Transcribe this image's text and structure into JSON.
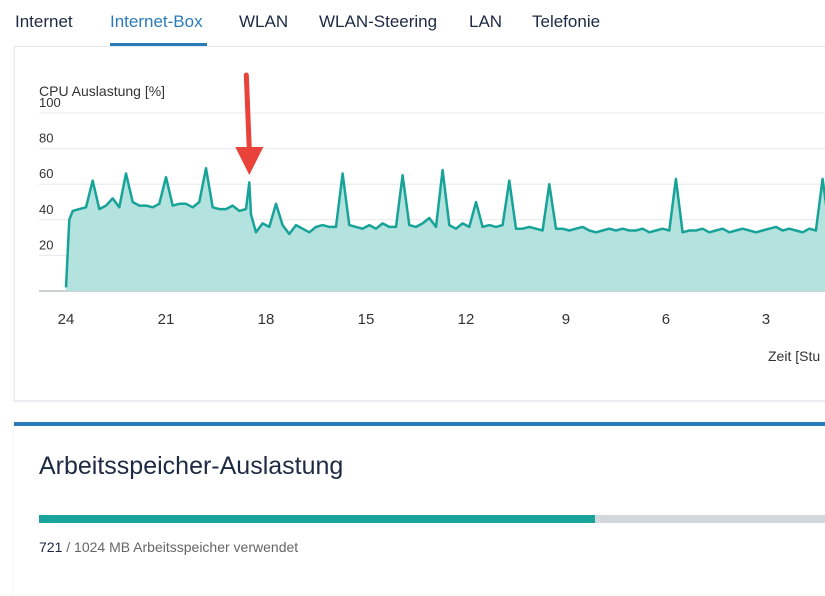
{
  "tabs": [
    {
      "label": "Internet",
      "active": false
    },
    {
      "label": "Internet-Box",
      "active": true
    },
    {
      "label": "WLAN",
      "active": false
    },
    {
      "label": "WLAN-Steering",
      "active": false
    },
    {
      "label": "LAN",
      "active": false
    },
    {
      "label": "Telefonie",
      "active": false
    }
  ],
  "colors": {
    "accent": "#2b7bb9",
    "series_line": "#18a399",
    "series_fill": "#b4e2df",
    "arrow": "#e8423b"
  },
  "chart_data": {
    "type": "area",
    "title": "CPU Auslastung [%]",
    "xlabel": "Zeit [Stu",
    "ylabel": "",
    "ylim": [
      0,
      100
    ],
    "yticks": [
      "20",
      "40",
      "60",
      "80",
      "100"
    ],
    "xlim": [
      24,
      0
    ],
    "xticks": [
      "24",
      "21",
      "18",
      "15",
      "12",
      "9",
      "6",
      "3"
    ],
    "grid": true,
    "annotation": {
      "type": "arrow",
      "points_to_x": 18.5
    },
    "series": [
      {
        "x": [
          24,
          23.9,
          23.8,
          23.6,
          23.4,
          23.2,
          23.0,
          22.8,
          22.6,
          22.4,
          22.2,
          22.0,
          21.8,
          21.6,
          21.4,
          21.2,
          21.0,
          20.8,
          20.6,
          20.4,
          20.2,
          20.0,
          19.8,
          19.6,
          19.4,
          19.2,
          19.0,
          18.8,
          18.6,
          18.5,
          18.45,
          18.3,
          18.1,
          17.9,
          17.7,
          17.5,
          17.3,
          17.1,
          16.9,
          16.7,
          16.5,
          16.3,
          16.1,
          15.9,
          15.7,
          15.5,
          15.3,
          15.1,
          14.9,
          14.7,
          14.5,
          14.3,
          14.1,
          13.9,
          13.7,
          13.5,
          13.3,
          13.1,
          12.9,
          12.7,
          12.5,
          12.3,
          12.1,
          11.9,
          11.7,
          11.5,
          11.3,
          11.1,
          10.9,
          10.7,
          10.5,
          10.3,
          10.1,
          9.9,
          9.7,
          9.5,
          9.3,
          9.1,
          8.9,
          8.7,
          8.5,
          8.3,
          8.1,
          7.9,
          7.7,
          7.5,
          7.3,
          7.1,
          6.9,
          6.7,
          6.5,
          6.3,
          6.1,
          5.9,
          5.7,
          5.5,
          5.3,
          5.1,
          4.9,
          4.7,
          4.5,
          4.3,
          4.1,
          3.9,
          3.7,
          3.5,
          3.3,
          3.1,
          2.9,
          2.7,
          2.5,
          2.3,
          2.1,
          1.9,
          1.7,
          1.5,
          1.3,
          1.1,
          0.9,
          0.8,
          0.7
        ],
        "y": [
          2,
          40,
          45,
          46,
          47,
          62,
          46,
          48,
          52,
          47,
          66,
          50,
          48,
          48,
          47,
          49,
          64,
          48,
          49,
          49,
          47,
          50,
          69,
          47,
          46,
          46,
          48,
          45,
          46,
          61,
          43,
          33,
          38,
          36,
          49,
          37,
          32,
          37,
          35,
          33,
          36,
          37,
          36,
          36,
          66,
          37,
          36,
          35,
          37,
          35,
          38,
          36,
          36,
          65,
          37,
          36,
          38,
          41,
          36,
          68,
          37,
          35,
          38,
          36,
          50,
          36,
          37,
          36,
          37,
          62,
          35,
          35,
          36,
          35,
          34,
          60,
          35,
          35,
          34,
          35,
          36,
          34,
          33,
          34,
          35,
          34,
          35,
          34,
          34,
          35,
          33,
          34,
          35,
          34,
          63,
          33,
          34,
          34,
          35,
          33,
          34,
          35,
          33,
          34,
          35,
          34,
          33,
          34,
          35,
          36,
          34,
          35,
          34,
          33,
          35,
          34,
          63,
          35,
          34,
          62,
          35
        ]
      }
    ]
  },
  "memory": {
    "title": "Arbeitsspeicher-Auslastung",
    "used": "721",
    "total_text": " / 1024 MB Arbeitsspeicher verwendet",
    "used_value": 721,
    "total_value": 1024
  }
}
